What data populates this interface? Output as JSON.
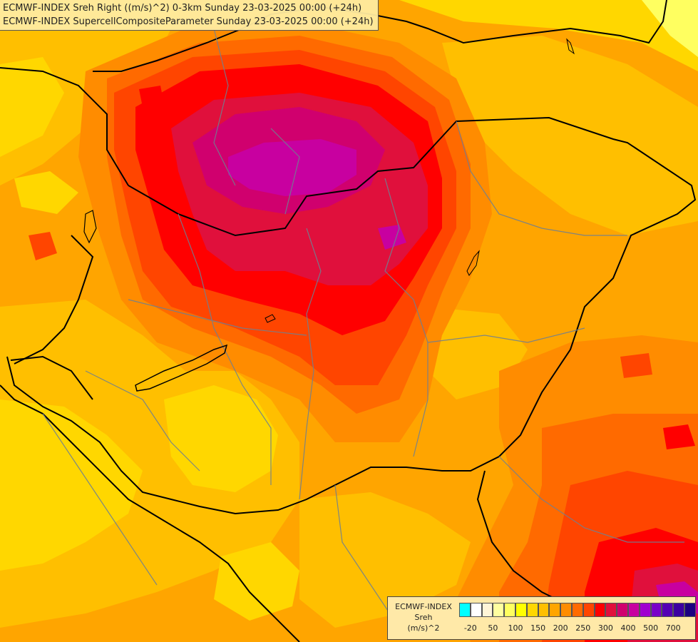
{
  "titles": {
    "line1": "ECMWF-INDEX Sreh Right ((m/s)^2) 0-3km Sunday 23-03-2025 00:00 (+24h)",
    "line2": "ECMWF-INDEX SupercellCompositeParameter Sunday 23-03-2025 00:00 (+24h)"
  },
  "legend": {
    "title_line1": "ECMWF-INDEX",
    "title_line2": "Sreh",
    "title_line3": "(m/s)^2",
    "colors": [
      "#00ffff",
      "#ffffff",
      "#fff5d8",
      "#ffffa0",
      "#ffff60",
      "#ffff00",
      "#ffd700",
      "#ffbf00",
      "#ffa500",
      "#ff8c00",
      "#ff6a00",
      "#ff4500",
      "#ff0000",
      "#e0103c",
      "#d0006e",
      "#c800a0",
      "#a000d0",
      "#7a00c8",
      "#5500b4",
      "#3c00a0",
      "#1c0080"
    ],
    "labels": [
      "-20",
      "50",
      "100",
      "150",
      "200",
      "250",
      "300",
      "400",
      "500",
      "700"
    ]
  }
}
